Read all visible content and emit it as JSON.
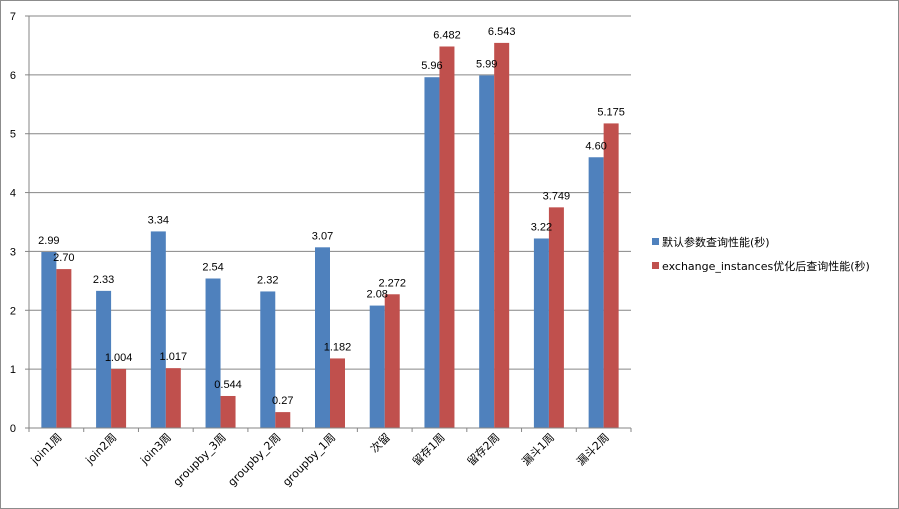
{
  "chart_data": {
    "type": "bar",
    "categories": [
      "join1周",
      "join2周",
      "join3周",
      "groupby_3周",
      "groupby_2周",
      "groupby_1周",
      "次留",
      "留存1周",
      "留存2周",
      "漏斗1周",
      "漏斗2周"
    ],
    "series": [
      {
        "name": "默认参数查询性能(秒)",
        "color": "#4f81bd",
        "values": [
          2.99,
          2.33,
          3.34,
          2.54,
          2.32,
          3.07,
          2.08,
          5.96,
          5.99,
          3.22,
          4.6
        ],
        "labels": [
          "2.99",
          "2.33",
          "3.34",
          "2.54",
          "2.32",
          "3.07",
          "2.08",
          "5.96",
          "5.99",
          "3.22",
          "4.60"
        ]
      },
      {
        "name": "exchange_instances优化后查询性能(秒)",
        "color": "#c0504d",
        "values": [
          2.7,
          1.004,
          1.017,
          0.544,
          0.27,
          1.182,
          2.272,
          6.482,
          6.543,
          3.749,
          5.175
        ],
        "labels": [
          "2.70",
          "1.004",
          "1.017",
          "0.544",
          "0.27",
          "1.182",
          "2.272",
          "6.482",
          "6.543",
          "3.749",
          "5.175"
        ]
      }
    ],
    "y_ticks": [
      "0",
      "1",
      "2",
      "3",
      "4",
      "5",
      "6",
      "7"
    ],
    "ylim": [
      0,
      7
    ],
    "grid": true,
    "legend_position": "right",
    "title": "",
    "xlabel": "",
    "ylabel": ""
  }
}
